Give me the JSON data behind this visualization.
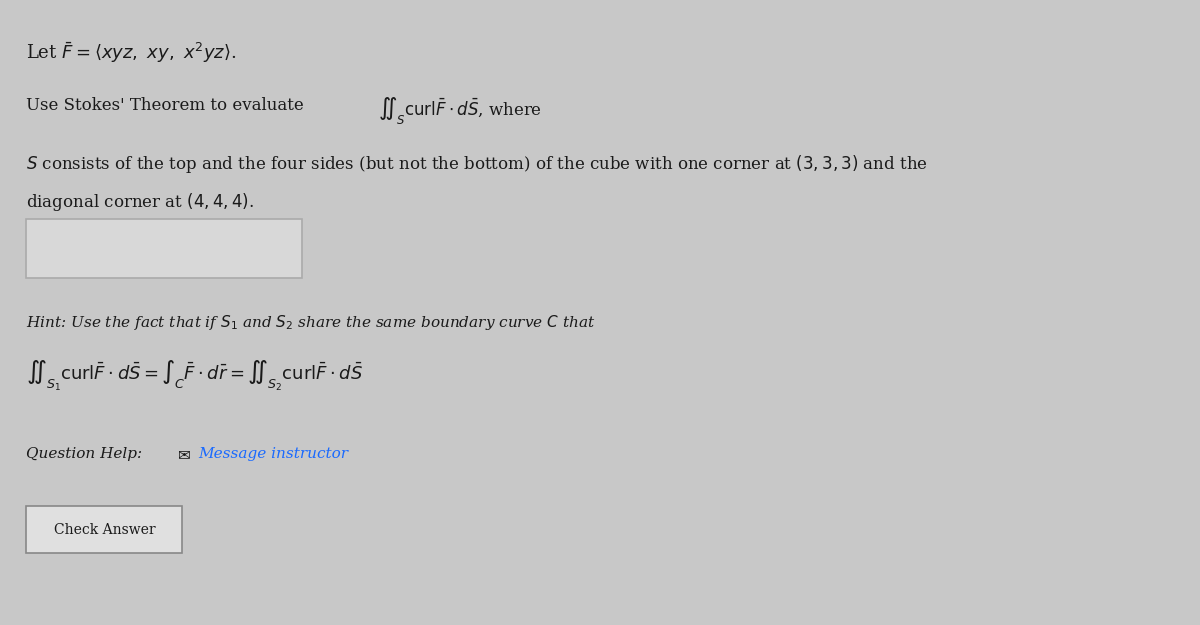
{
  "background_color": "#c8c8c8",
  "title_line": "Let $\\bar{F} = \\langle xyz,\\ xy,\\ x^2yz \\rangle$.",
  "line2a": "Use Stokes' Theorem to evaluate",
  "line2b": "$\\iint_S \\mathrm{curl}\\bar{F} \\cdot d\\bar{S}$, where",
  "line3": "$S$ consists of the top and the four sides (but not the bottom) of the cube with one corner at $(3,3,3)$ and the",
  "line4": "diagonal corner at $(4,4,4)$.",
  "hint_line": "Hint: Use the fact that if $S_1$ and $S_2$ share the same boundary curve $C$ that",
  "equation_line": "$\\iint_{S_1} \\mathrm{curl}\\bar{F} \\cdot d\\bar{S} = \\int_C \\bar{F} \\cdot d\\bar{r} = \\iint_{S_2} \\mathrm{curl}\\bar{F} \\cdot d\\bar{S}$",
  "help_line_plain": "Question Help: ",
  "help_line_link": "Message instructor",
  "button_text": "Check Answer",
  "text_color": "#1a1a1a",
  "link_color": "#1a6aff",
  "input_box_color": "#d8d8d8",
  "input_box_border": "#aaaaaa",
  "button_color": "#e0e0e0",
  "button_border": "#888888",
  "font_size_title": 13,
  "font_size_body": 12,
  "font_size_hint": 11,
  "font_size_eq": 13,
  "font_size_help": 11
}
